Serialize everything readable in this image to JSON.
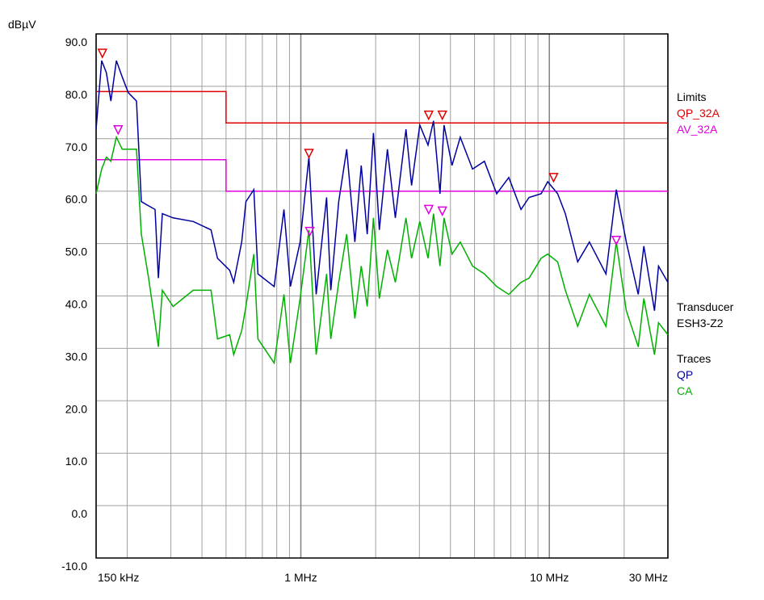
{
  "chart_data": {
    "type": "line",
    "y_label": "dBµV",
    "xlog": true,
    "grid": true,
    "xlim": [
      0.15,
      30
    ],
    "xticks": [
      {
        "value": 0.15,
        "label": "150 kHz"
      },
      {
        "value": 1,
        "label": "1 MHz"
      },
      {
        "value": 10,
        "label": "10 MHz"
      },
      {
        "value": 30,
        "label": "30 MHz"
      }
    ],
    "xminorticks": [
      0.2,
      0.3,
      0.4,
      0.5,
      0.6,
      0.7,
      0.8,
      0.9,
      2,
      3,
      4,
      5,
      6,
      7,
      8,
      9,
      20
    ],
    "ylim": [
      -10,
      90
    ],
    "yticks": [
      {
        "value": 90,
        "label": "90.0"
      },
      {
        "value": 80,
        "label": "80.0"
      },
      {
        "value": 70,
        "label": "70.0"
      },
      {
        "value": 60,
        "label": "60.0"
      },
      {
        "value": 50,
        "label": "50.0"
      },
      {
        "value": 40,
        "label": "40.0"
      },
      {
        "value": 30,
        "label": "30.0"
      },
      {
        "value": 20,
        "label": "20.0"
      },
      {
        "value": 10,
        "label": "10.0"
      },
      {
        "value": 0,
        "label": "0.0"
      },
      {
        "value": -10,
        "label": "-10.0"
      }
    ],
    "x": [
      0.15,
      0.158,
      0.165,
      0.172,
      0.181,
      0.191,
      0.202,
      0.218,
      0.228,
      0.244,
      0.259,
      0.267,
      0.277,
      0.306,
      0.369,
      0.435,
      0.462,
      0.517,
      0.537,
      0.578,
      0.601,
      0.647,
      0.672,
      0.781,
      0.855,
      0.908,
      0.993,
      1.078,
      1.153,
      1.27,
      1.32,
      1.42,
      1.53,
      1.65,
      1.75,
      1.85,
      1.96,
      2.07,
      2.23,
      2.4,
      2.65,
      2.79,
      3.01,
      3.25,
      3.42,
      3.63,
      3.77,
      4.06,
      4.38,
      4.91,
      5.48,
      6.14,
      6.87,
      7.69,
      8.29,
      9.27,
      9.85,
      10.8,
      11.6,
      13.0,
      14.5,
      16.9,
      18.6,
      20.4,
      22.8,
      24.0,
      26.5,
      27.5,
      30
    ],
    "traces_title": "Traces",
    "series": [
      {
        "name": "QP",
        "color": "#0000a0",
        "values": [
          71.8,
          84.9,
          82.6,
          77.2,
          84.9,
          81.8,
          78.8,
          77.2,
          58.0,
          57.2,
          56.5,
          43.4,
          55.7,
          54.9,
          54.2,
          52.6,
          47.2,
          44.9,
          42.6,
          50.3,
          58.0,
          60.3,
          44.2,
          41.8,
          56.5,
          41.8,
          50.3,
          66.5,
          40.3,
          58.8,
          41.1,
          58.0,
          68.0,
          50.3,
          64.9,
          51.8,
          71.1,
          52.6,
          68.0,
          54.9,
          71.8,
          61.1,
          72.6,
          68.8,
          73.4,
          59.5,
          72.6,
          64.9,
          70.3,
          64.2,
          65.7,
          59.5,
          62.6,
          56.5,
          58.8,
          59.5,
          61.8,
          59.5,
          55.7,
          46.5,
          50.3,
          44.2,
          60.3,
          50.3,
          40.3,
          49.5,
          37.2,
          45.7,
          42.6
        ]
      },
      {
        "name": "CA",
        "color": "#00b000",
        "values": [
          59.5,
          64.2,
          66.5,
          65.7,
          70.3,
          68.0,
          68.0,
          68.0,
          51.8,
          43.4,
          34.9,
          30.3,
          41.1,
          38.0,
          41.1,
          41.1,
          31.8,
          32.6,
          28.8,
          33.4,
          38.0,
          48.0,
          31.8,
          27.2,
          40.3,
          27.2,
          39.5,
          52.6,
          28.8,
          44.2,
          31.8,
          42.6,
          51.8,
          35.7,
          45.7,
          38.0,
          54.9,
          39.5,
          48.8,
          42.6,
          54.9,
          47.2,
          54.2,
          47.2,
          55.7,
          45.7,
          54.9,
          48.0,
          50.3,
          45.7,
          44.2,
          41.8,
          40.3,
          42.6,
          43.4,
          47.2,
          48.0,
          46.5,
          41.1,
          34.2,
          40.3,
          34.2,
          50.3,
          37.2,
          30.3,
          39.5,
          28.8,
          34.9,
          32.6
        ]
      }
    ],
    "limits": {
      "title": "Limits",
      "series": [
        {
          "name": "QP_32A",
          "color": "#e00000",
          "x": [
            0.15,
            0.5,
            0.5,
            30
          ],
          "values": [
            79,
            79,
            73,
            73
          ]
        },
        {
          "name": "AV_32A",
          "color": "#e000e0",
          "x": [
            0.15,
            0.5,
            0.5,
            30
          ],
          "values": [
            66,
            66,
            60,
            60
          ]
        }
      ]
    },
    "transducer": {
      "title": "Transducer",
      "name": "ESH3-Z2"
    },
    "markers": [
      {
        "color": "#e00000",
        "x": [
          0.159,
          1.078,
          3.27,
          3.71,
          10.4
        ],
        "values": [
          86.3,
          67.2,
          74.5,
          74.5,
          62.6
        ]
      },
      {
        "color": "#e000e0",
        "x": [
          0.184,
          1.086,
          3.27,
          3.71,
          18.6
        ],
        "values": [
          71.7,
          52.3,
          56.5,
          56.2,
          50.6
        ]
      }
    ]
  }
}
